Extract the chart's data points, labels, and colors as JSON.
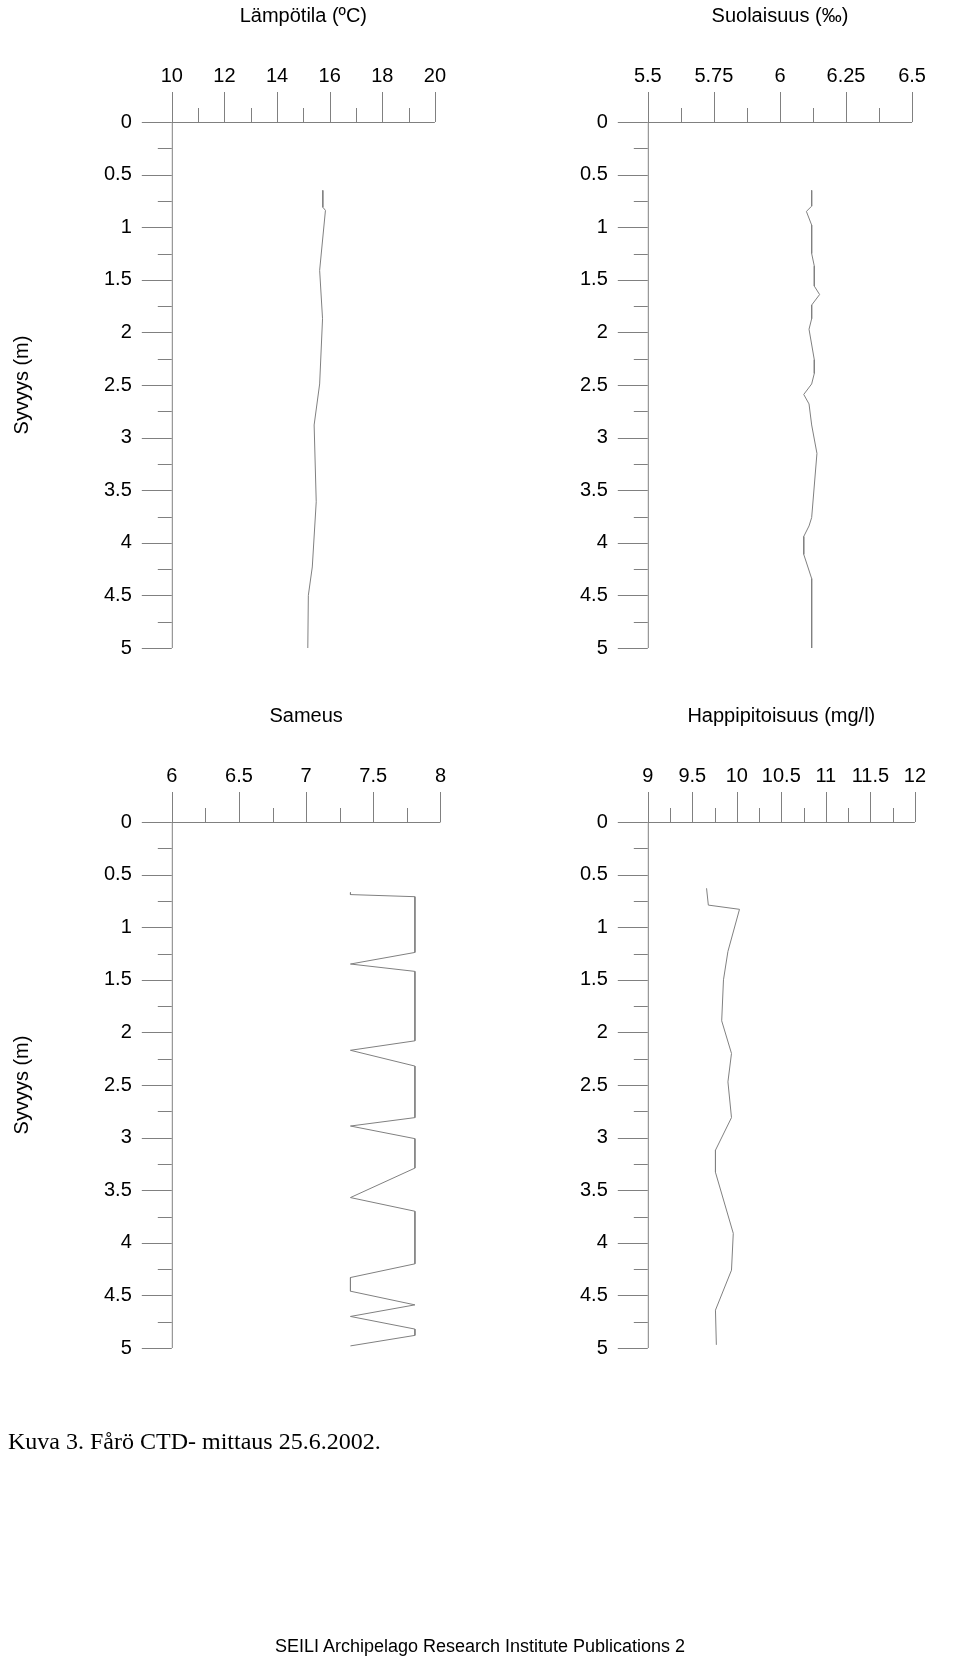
{
  "chart_data": [
    {
      "type": "line",
      "xlabel": "Lämpötila (ºC)",
      "ylabel": "Syvyys (m)",
      "xlim": [
        10,
        20
      ],
      "xticks": [
        10,
        {
          "value": 11,
          "label": null
        },
        12,
        {
          "value": 13,
          "label": null
        },
        14,
        {
          "value": 15,
          "label": null
        },
        16,
        {
          "value": 17,
          "label": null
        },
        18,
        {
          "value": 19,
          "label": null
        },
        20
      ],
      "ylim": [
        5,
        0
      ],
      "yticks": [
        0,
        {
          "value": 0.25,
          "label": null
        },
        0.5,
        {
          "value": 0.75,
          "label": null
        },
        1,
        {
          "value": 1.25,
          "label": null
        },
        1.5,
        {
          "value": 1.75,
          "label": null
        },
        2,
        {
          "value": 2.25,
          "label": null
        },
        2.5,
        {
          "value": 2.75,
          "label": null
        },
        3,
        {
          "value": 3.25,
          "label": null
        },
        3.5,
        {
          "value": 3.75,
          "label": null
        },
        4,
        {
          "value": 4.25,
          "label": null
        },
        4.5,
        {
          "value": 4.75,
          "label": null
        },
        5
      ],
      "marker": "none",
      "series": [
        {
          "color": "#808080",
          "x": [
            15.74,
            15.74,
            15.84,
            15.62,
            15.73,
            15.62,
            15.41,
            15.49,
            15.34,
            15.19,
            15.17
          ],
          "values": [
            0.65,
            0.81,
            0.84,
            1.41,
            1.87,
            2.49,
            2.88,
            3.61,
            4.23,
            4.5,
            5.0
          ]
        }
      ]
    },
    {
      "type": "line",
      "xlabel": "Suolaisuus (‰)",
      "xlim": [
        5.5,
        6.5
      ],
      "xticks": [
        5.5,
        {
          "value": 5.625,
          "label": null
        },
        5.75,
        {
          "value": 5.875,
          "label": null
        },
        6,
        {
          "value": 6.125,
          "label": null
        },
        6.25,
        {
          "value": 6.375,
          "label": null
        },
        6.5
      ],
      "ylim": [
        5,
        0
      ],
      "yticks": [
        0,
        {
          "value": 0.25,
          "label": null
        },
        0.5,
        {
          "value": 0.75,
          "label": null
        },
        1,
        {
          "value": 1.25,
          "label": null
        },
        1.5,
        {
          "value": 1.75,
          "label": null
        },
        2,
        {
          "value": 2.25,
          "label": null
        },
        2.5,
        {
          "value": 2.75,
          "label": null
        },
        3,
        {
          "value": 3.25,
          "label": null
        },
        3.5,
        {
          "value": 3.75,
          "label": null
        },
        4,
        {
          "value": 4.25,
          "label": null
        },
        4.5,
        {
          "value": 4.75,
          "label": null
        },
        5
      ],
      "marker": "none",
      "series": [
        {
          "color": "#808080",
          "x": [
            6.12,
            6.12,
            6.1,
            6.12,
            6.12,
            6.13,
            6.13,
            6.15,
            6.12,
            6.12,
            6.11,
            6.13,
            6.13,
            6.12,
            6.09,
            6.11,
            6.12,
            6.14,
            6.12,
            6.11,
            6.09,
            6.09,
            6.12,
            6.12
          ],
          "values": [
            0.65,
            0.8,
            0.85,
            0.98,
            1.25,
            1.37,
            1.56,
            1.64,
            1.74,
            1.87,
            1.97,
            2.26,
            2.39,
            2.49,
            2.59,
            2.68,
            2.88,
            3.15,
            3.76,
            3.84,
            3.94,
            4.11,
            4.34,
            5.0
          ]
        }
      ]
    },
    {
      "type": "line",
      "xlabel": "Sameus",
      "ylabel": "Syvyys (m)",
      "xlim": [
        6,
        8
      ],
      "xticks": [
        6,
        {
          "value": 6.25,
          "label": null
        },
        6.5,
        {
          "value": 6.75,
          "label": null
        },
        7,
        {
          "value": 7.25,
          "label": null
        },
        7.5,
        {
          "value": 7.75,
          "label": null
        },
        8
      ],
      "ylim": [
        5,
        0
      ],
      "yticks": [
        0,
        {
          "value": 0.25,
          "label": null
        },
        0.5,
        {
          "value": 0.75,
          "label": null
        },
        1,
        {
          "value": 1.25,
          "label": null
        },
        1.5,
        {
          "value": 1.75,
          "label": null
        },
        2,
        {
          "value": 2.25,
          "label": null
        },
        2.5,
        {
          "value": 2.75,
          "label": null
        },
        3,
        {
          "value": 3.25,
          "label": null
        },
        3.5,
        {
          "value": 3.75,
          "label": null
        },
        4,
        {
          "value": 4.25,
          "label": null
        },
        4.5,
        {
          "value": 4.75,
          "label": null
        },
        5
      ],
      "marker": "none",
      "series": [
        {
          "color": "#808080",
          "x": [
            7.33,
            7.33,
            7.81,
            7.81,
            7.33,
            7.81,
            7.81,
            7.33,
            7.81,
            7.81,
            7.33,
            7.81,
            7.81,
            7.33,
            7.81,
            7.81,
            7.33,
            7.33,
            7.81,
            7.33,
            7.81,
            7.81,
            7.33
          ],
          "values": [
            0.67,
            0.69,
            0.71,
            1.24,
            1.35,
            1.42,
            2.08,
            2.17,
            2.32,
            2.81,
            2.89,
            3.01,
            3.29,
            3.57,
            3.7,
            4.2,
            4.33,
            4.46,
            4.59,
            4.7,
            4.82,
            4.88,
            4.98
          ]
        }
      ]
    },
    {
      "type": "line",
      "xlabel": "Happipitoisuus (mg/l)",
      "xlim": [
        9,
        12
      ],
      "xticks": [
        9,
        {
          "value": 9.25,
          "label": null
        },
        9.5,
        {
          "value": 9.75,
          "label": null
        },
        10,
        {
          "value": 10.25,
          "label": null
        },
        10.5,
        {
          "value": 10.75,
          "label": null
        },
        11,
        {
          "value": 11.25,
          "label": null
        },
        11.5,
        {
          "value": 11.75,
          "label": null
        },
        12
      ],
      "ylim": [
        5,
        0
      ],
      "yticks": [
        0,
        {
          "value": 0.25,
          "label": null
        },
        0.5,
        {
          "value": 0.75,
          "label": null
        },
        1,
        {
          "value": 1.25,
          "label": null
        },
        1.5,
        {
          "value": 1.75,
          "label": null
        },
        2,
        {
          "value": 2.25,
          "label": null
        },
        2.5,
        {
          "value": 2.75,
          "label": null
        },
        3,
        {
          "value": 3.25,
          "label": null
        },
        3.5,
        {
          "value": 3.75,
          "label": null
        },
        4,
        {
          "value": 4.25,
          "label": null
        },
        4.5,
        {
          "value": 4.75,
          "label": null
        },
        5
      ],
      "marker": "none",
      "series": [
        {
          "color": "#808080",
          "x": [
            9.66,
            9.68,
            10.03,
            9.9,
            9.85,
            9.83,
            9.94,
            9.9,
            9.94,
            9.76,
            9.76,
            9.96,
            9.94,
            9.76,
            9.77
          ],
          "values": [
            0.63,
            0.79,
            0.83,
            1.23,
            1.5,
            1.89,
            2.2,
            2.47,
            2.81,
            3.12,
            3.33,
            3.91,
            4.26,
            4.64,
            4.97
          ]
        }
      ],
      "annotations": [
        "Kuva 3. Fårö CTD- mittaus 25.6.2002.",
        "SEILI Archipelago Research Institute Publications 2"
      ]
    }
  ]
}
